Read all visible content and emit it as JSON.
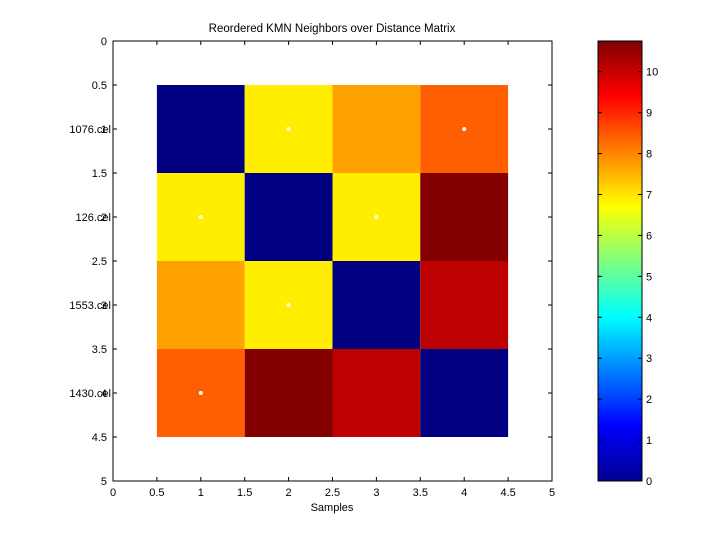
{
  "chart_data": {
    "type": "heatmap",
    "title": "Reordered KMN Neighbors over Distance Matrix",
    "xlabel": "Samples",
    "ylabel": "",
    "xlim": [
      0,
      5
    ],
    "ylim": [
      0,
      5
    ],
    "y_reversed": true,
    "x_ticks": [
      "0",
      "0.5",
      "1",
      "1.5",
      "2",
      "2.5",
      "3",
      "3.5",
      "4",
      "4.5",
      "5"
    ],
    "y_ticks": [
      "0",
      "0.5",
      "1",
      "1.5",
      "2",
      "2.5",
      "3",
      "3.5",
      "4",
      "4.5",
      "5"
    ],
    "row_labels": [
      "1076.cel",
      "126.cel",
      "1553.cel",
      "1430.cel"
    ],
    "matrix": [
      [
        0,
        6.9,
        7.7,
        8.4
      ],
      [
        6.9,
        0,
        6.9,
        10.7
      ],
      [
        7.7,
        6.9,
        0,
        10.1
      ],
      [
        8.4,
        10.7,
        10.1,
        0
      ]
    ],
    "neighbor_markers": [
      {
        "x": 2,
        "y": 1
      },
      {
        "x": 4,
        "y": 1
      },
      {
        "x": 1,
        "y": 2
      },
      {
        "x": 3,
        "y": 2
      },
      {
        "x": 2,
        "y": 3
      },
      {
        "x": 1,
        "y": 4
      }
    ],
    "colormap": "jet",
    "colorbar": {
      "min": 0,
      "max": 10.75,
      "ticks": [
        0,
        1,
        2,
        3,
        4,
        5,
        6,
        7,
        8,
        9,
        10
      ]
    },
    "marker_color": "#ffffff"
  }
}
